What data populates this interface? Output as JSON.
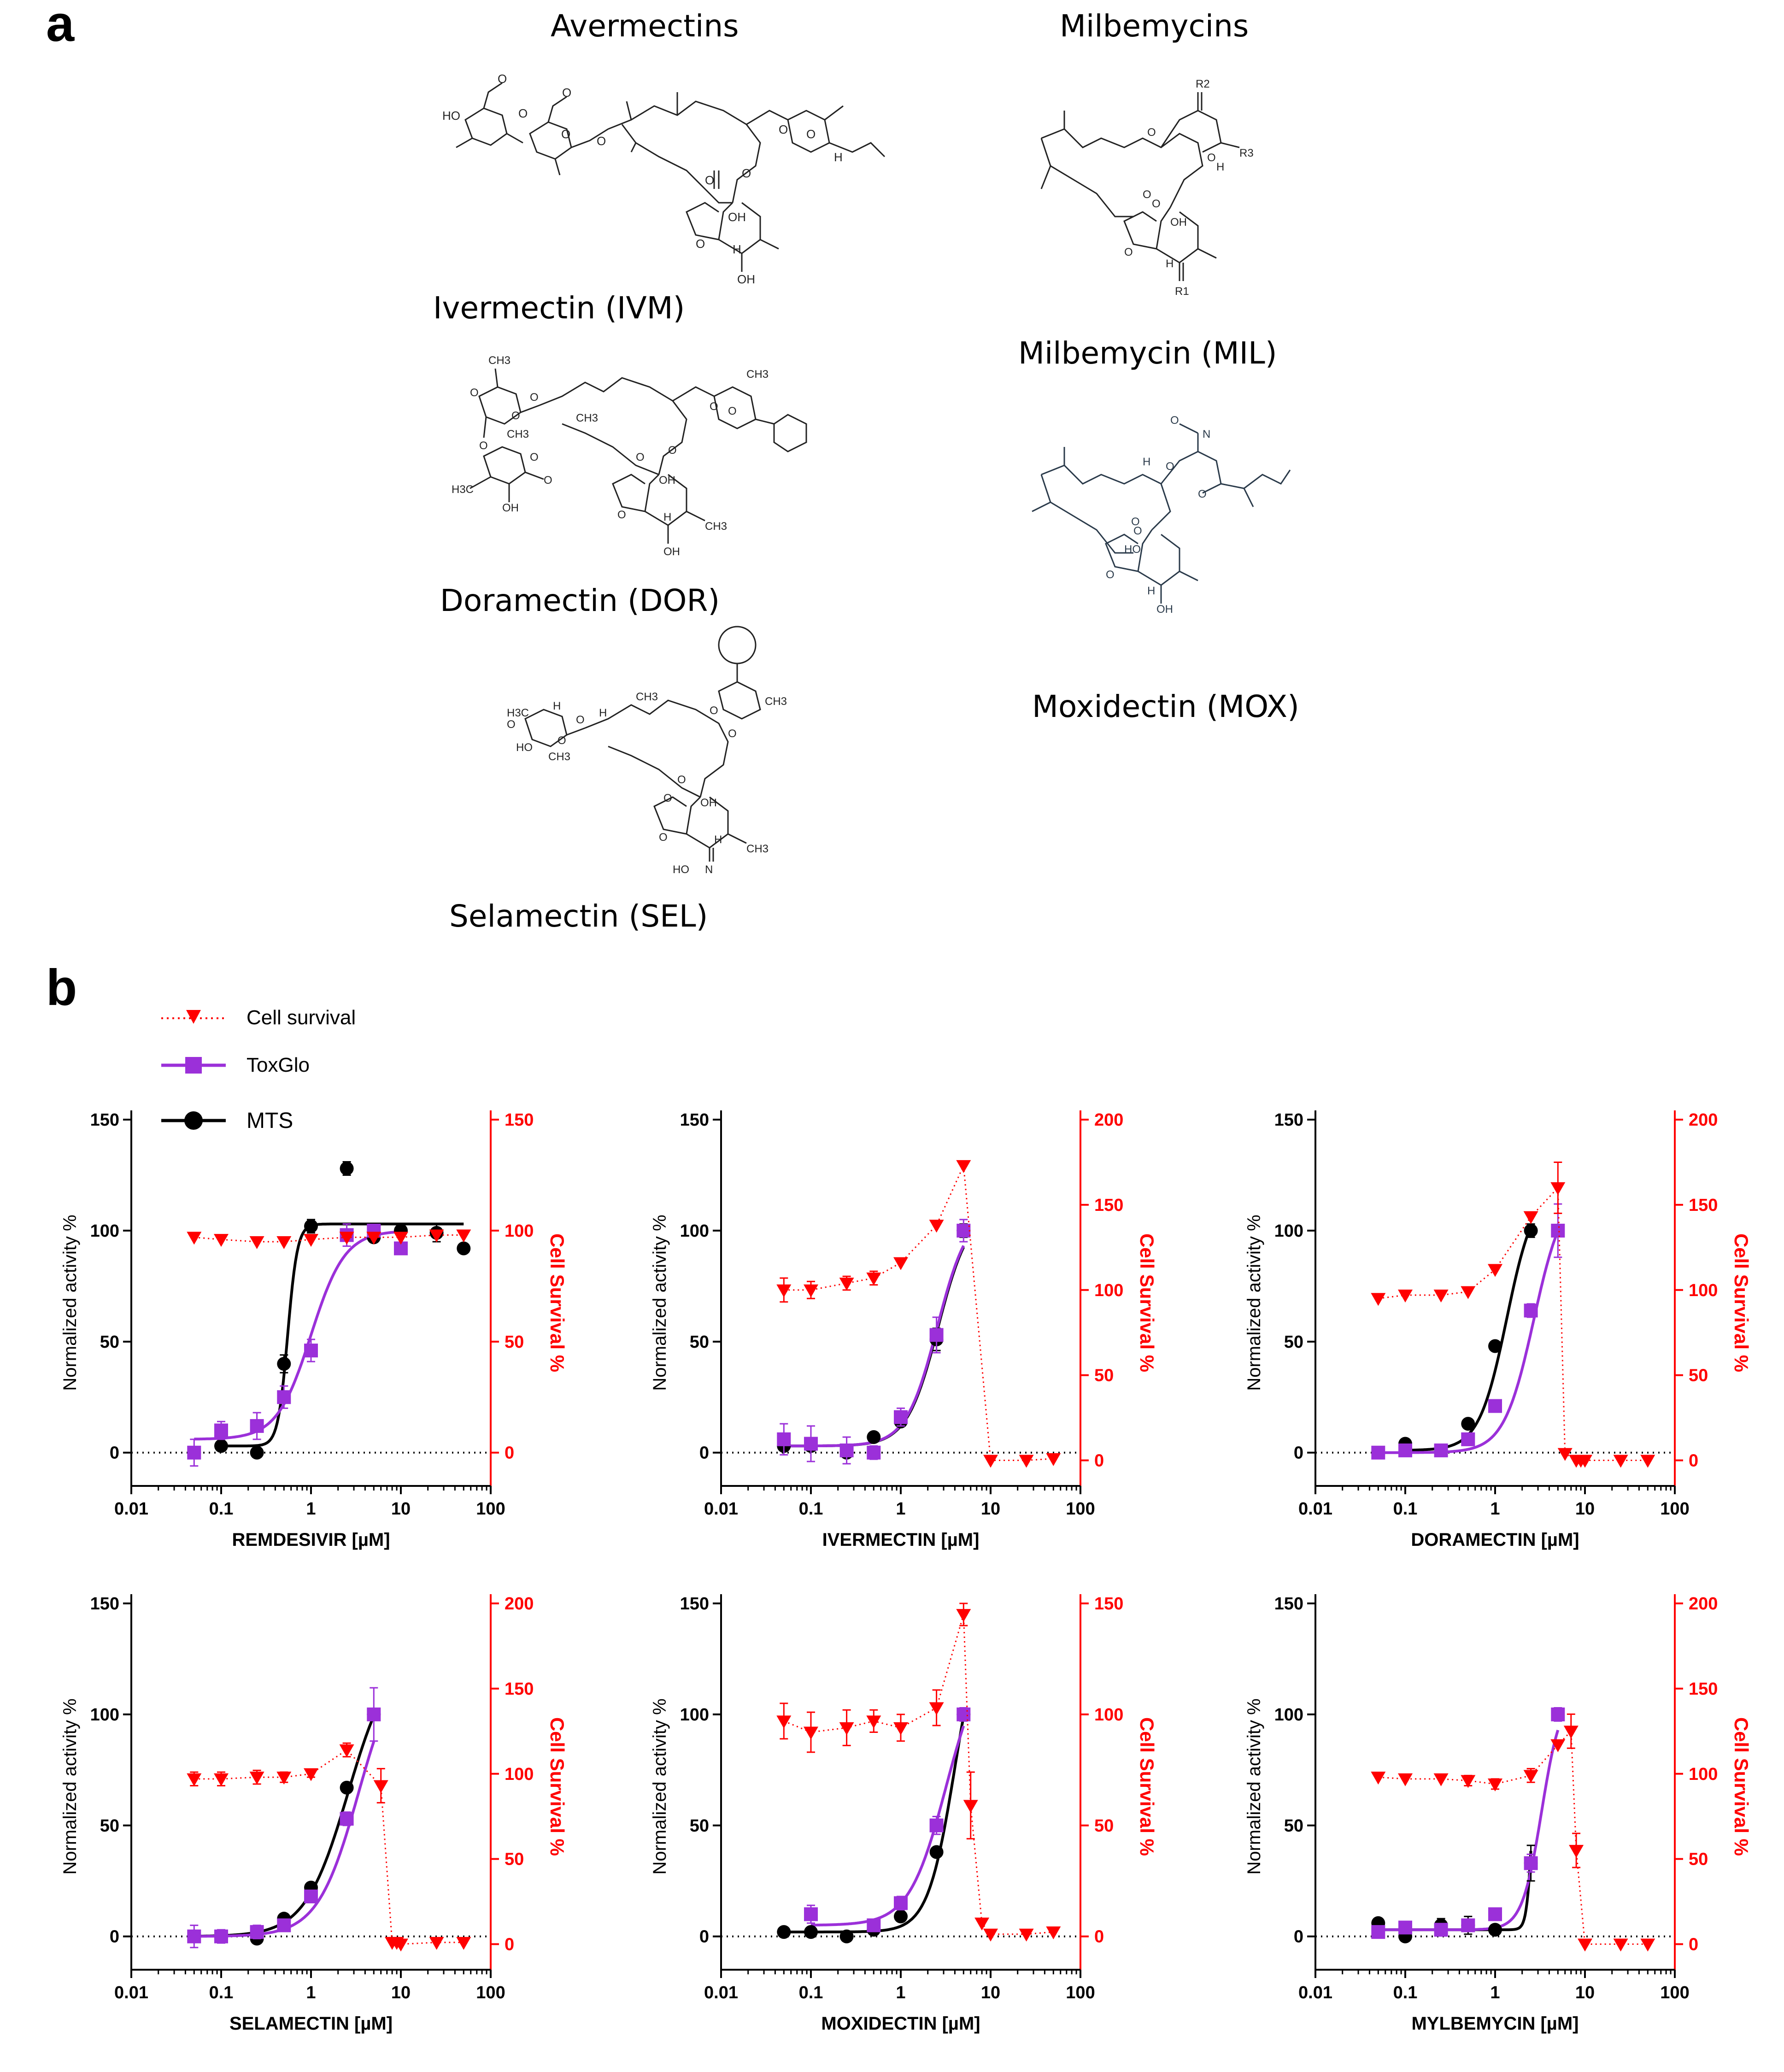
{
  "panel_a": {
    "label": "a",
    "avermectins_title": "Avermectins",
    "milbemycins_title": "Milbemycins",
    "molecules": {
      "ivm": "Ivermectin (IVM)",
      "dor": "Doramectin (DOR)",
      "sel": "Selamectin (SEL)",
      "mil": "Milbemycin (MIL)",
      "mox": "Moxidectin (MOX)"
    },
    "atom_labels": {
      "ivm": [
        "HO",
        "O",
        "O",
        "O",
        "O",
        "O",
        "O",
        "O",
        "O",
        "O",
        "O",
        "H",
        "OH",
        "H",
        "OH"
      ],
      "dor": [
        "CH3",
        "CH3",
        "O",
        "O",
        "O",
        "O",
        "O",
        "O",
        "O",
        "O",
        "O",
        "CH3",
        "CH3",
        "H3C",
        "O",
        "O",
        "OH",
        "OH",
        "H",
        "OH",
        "CH3"
      ],
      "sel": [
        "H3C",
        "HO",
        "O",
        "O",
        "O",
        "H",
        "H",
        "CH3",
        "CH3",
        "O",
        "O",
        "O",
        "CH3",
        "O",
        "OH",
        "O",
        "H",
        "HO",
        "N",
        "CH3"
      ],
      "mil": [
        "R2",
        "O",
        "O",
        "H",
        "R3",
        "O",
        "O",
        "OH",
        "O",
        "H",
        "R1"
      ],
      "mox": [
        "O",
        "N",
        "H",
        "O",
        "O",
        "O",
        "O",
        "HO",
        "O",
        "H",
        "OH"
      ]
    }
  },
  "panel_b": {
    "label": "b",
    "legend": {
      "cell_survival": "Cell survival",
      "toxglo": "ToxGlo",
      "mts": "MTS"
    },
    "colors": {
      "mts": "#000000",
      "toxglo": "#9b30d9",
      "survival": "#ff0000"
    }
  },
  "chart_data": [
    {
      "type": "line",
      "title": "",
      "xlabel": "REMDESIVIR [µM]",
      "ylabel": "Normalized activity %",
      "y2label": "Cell Survival %",
      "xscale": "log",
      "xlim": [
        0.01,
        100
      ],
      "x_ticks": [
        "0.01",
        "0.1",
        "1",
        "10",
        "100"
      ],
      "ylim": [
        -15,
        150
      ],
      "y_ticks": [
        "0",
        "50",
        "100",
        "150"
      ],
      "y2lim": [
        -15,
        150
      ],
      "y2_ticks": [
        "0",
        "50",
        "100",
        "150"
      ],
      "series": [
        {
          "name": "MTS",
          "marker": "circle",
          "x": [
            0.1,
            0.25,
            0.5,
            1,
            2.5,
            5,
            10,
            25,
            50
          ],
          "values": [
            3,
            0,
            40,
            102,
            128,
            97,
            100,
            99,
            92
          ],
          "err": [
            2,
            1,
            4,
            3,
            3,
            2,
            2,
            4,
            1
          ]
        },
        {
          "name": "ToxGlo",
          "marker": "square",
          "x": [
            0.05,
            0.1,
            0.25,
            0.5,
            1,
            2.5,
            5,
            10
          ],
          "values": [
            0,
            10,
            12,
            25,
            46,
            98,
            100,
            92
          ],
          "err": [
            6,
            4,
            6,
            5,
            5,
            5,
            2,
            2
          ]
        },
        {
          "name": "Cell survival",
          "marker": "triangle-down",
          "axis": "right",
          "x": [
            0.05,
            0.1,
            0.25,
            0.5,
            1,
            2.5,
            5,
            10,
            25,
            50
          ],
          "values": [
            97,
            96,
            95,
            95,
            96,
            97,
            97,
            97,
            98,
            98
          ]
        }
      ],
      "fits": [
        {
          "name": "MTS",
          "bottom": 3,
          "top": 103,
          "ec50": 0.55,
          "hill": 8
        },
        {
          "name": "ToxGlo",
          "bottom": 6,
          "top": 100,
          "ec50": 1.0,
          "hill": 2.3
        }
      ]
    },
    {
      "type": "line",
      "xlabel": "IVERMECTIN [µM]",
      "ylabel": "Normalized activity %",
      "y2label": "Cell Survival %",
      "xscale": "log",
      "xlim": [
        0.01,
        100
      ],
      "x_ticks": [
        "0.01",
        "0.1",
        "1",
        "10",
        "100"
      ],
      "ylim": [
        -15,
        150
      ],
      "y_ticks": [
        "0",
        "50",
        "100",
        "150"
      ],
      "y2lim": [
        -15,
        200
      ],
      "y2_ticks": [
        "0",
        "50",
        "100",
        "150",
        "200"
      ],
      "series": [
        {
          "name": "MTS",
          "marker": "circle",
          "x": [
            0.05,
            0.1,
            0.25,
            0.5,
            1,
            2.5,
            5
          ],
          "values": [
            3,
            3,
            0,
            7,
            14,
            51,
            100
          ],
          "err": [
            1,
            1,
            1,
            1,
            2,
            5,
            3
          ]
        },
        {
          "name": "ToxGlo",
          "marker": "square",
          "x": [
            0.05,
            0.1,
            0.25,
            0.5,
            1,
            2.5,
            5
          ],
          "values": [
            6,
            4,
            1,
            0,
            16,
            53,
            100
          ],
          "err": [
            7,
            8,
            6,
            3,
            4,
            8,
            5
          ]
        },
        {
          "name": "Cell survival",
          "marker": "triangle-down",
          "axis": "right",
          "x": [
            0.05,
            0.1,
            0.25,
            0.5,
            1,
            2.5,
            5,
            10,
            25,
            50
          ],
          "values": [
            100,
            100,
            104,
            107,
            116,
            138,
            173,
            0,
            0,
            1
          ],
          "err": [
            7,
            5,
            4,
            4,
            0,
            0,
            0,
            0,
            0,
            0
          ]
        }
      ],
      "fits": [
        {
          "name": "MTS",
          "bottom": 3,
          "top": 110,
          "ec50": 2.6,
          "hill": 2.5
        },
        {
          "name": "ToxGlo",
          "bottom": 3,
          "top": 110,
          "ec50": 2.55,
          "hill": 2.5
        }
      ]
    },
    {
      "type": "line",
      "xlabel": "DORAMECTIN [µM]",
      "ylabel": "Normalized activity %",
      "y2label": "Cell Survival %",
      "xscale": "log",
      "xlim": [
        0.01,
        100
      ],
      "x_ticks": [
        "0.01",
        "0.1",
        "1",
        "10",
        "100"
      ],
      "ylim": [
        -15,
        150
      ],
      "y_ticks": [
        "0",
        "50",
        "100",
        "150"
      ],
      "y2lim": [
        -15,
        200
      ],
      "y2_ticks": [
        "0",
        "50",
        "100",
        "150",
        "200"
      ],
      "series": [
        {
          "name": "MTS",
          "marker": "circle",
          "x": [
            0.1,
            0.5,
            1,
            2.5
          ],
          "values": [
            4,
            13,
            48,
            100
          ],
          "err": [
            1,
            1,
            2,
            3
          ]
        },
        {
          "name": "ToxGlo",
          "marker": "square",
          "x": [
            0.05,
            0.1,
            0.25,
            0.5,
            1,
            2.5,
            5
          ],
          "values": [
            0,
            1,
            1,
            6,
            21,
            64,
            100
          ],
          "err": [
            1,
            1,
            1,
            1,
            2,
            3,
            12
          ]
        },
        {
          "name": "Cell survival",
          "marker": "triangle-down",
          "axis": "right",
          "x": [
            0.05,
            0.1,
            0.25,
            0.5,
            1,
            2.5,
            5,
            6,
            8,
            9,
            10,
            25,
            50
          ],
          "values": [
            95,
            97,
            97,
            99,
            112,
            143,
            160,
            4,
            0,
            0,
            0,
            0,
            0
          ],
          "err": [
            0,
            0,
            0,
            0,
            0,
            0,
            15,
            0,
            0,
            0,
            0,
            0,
            0
          ]
        }
      ],
      "fits": [
        {
          "name": "MTS",
          "bottom": 1,
          "top": 120,
          "ec50": 1.35,
          "hill": 2.8
        },
        {
          "name": "ToxGlo",
          "bottom": 0,
          "top": 120,
          "ec50": 2.7,
          "hill": 2.6
        }
      ]
    },
    {
      "type": "line",
      "xlabel": "SELAMECTIN [µM]",
      "ylabel": "Normalized activity %",
      "y2label": "Cell Survival %",
      "xscale": "log",
      "xlim": [
        0.01,
        100
      ],
      "x_ticks": [
        "0.01",
        "0.1",
        "1",
        "10",
        "100"
      ],
      "ylim": [
        -15,
        150
      ],
      "y_ticks": [
        "0",
        "50",
        "100",
        "150"
      ],
      "y2lim": [
        -15,
        200
      ],
      "y2_ticks": [
        "0",
        "50",
        "100",
        "150",
        "200"
      ],
      "series": [
        {
          "name": "MTS",
          "marker": "circle",
          "x": [
            0.05,
            0.1,
            0.25,
            0.5,
            1,
            2.5,
            5
          ],
          "values": [
            0,
            0,
            -1,
            8,
            22,
            67,
            100
          ],
          "err": [
            1,
            1,
            1,
            1,
            1,
            2,
            2
          ]
        },
        {
          "name": "ToxGlo",
          "marker": "square",
          "x": [
            0.05,
            0.1,
            0.25,
            0.5,
            1,
            2.5,
            5
          ],
          "values": [
            0,
            0,
            2,
            5,
            18,
            53,
            100
          ],
          "err": [
            5,
            3,
            3,
            2,
            2,
            3,
            12
          ]
        },
        {
          "name": "Cell survival",
          "marker": "triangle-down",
          "axis": "right",
          "x": [
            0.05,
            0.1,
            0.25,
            0.5,
            1,
            2.5,
            6,
            8,
            9,
            10,
            25,
            50
          ],
          "values": [
            97,
            97,
            98,
            98,
            100,
            114,
            93,
            1,
            1,
            0,
            1,
            1
          ],
          "err": [
            4,
            4,
            4,
            3,
            2,
            4,
            10,
            0,
            0,
            0,
            0,
            0
          ]
        }
      ],
      "fits": [
        {
          "name": "MTS",
          "bottom": 0,
          "top": 130,
          "ec50": 2.6,
          "hill": 1.8
        },
        {
          "name": "ToxGlo",
          "bottom": 0,
          "top": 130,
          "ec50": 3.4,
          "hill": 1.9
        }
      ]
    },
    {
      "type": "line",
      "xlabel": "MOXIDECTIN [µM]",
      "ylabel": "Normalized activity %",
      "y2label": "Cell Survival %",
      "xscale": "log",
      "xlim": [
        0.01,
        100
      ],
      "x_ticks": [
        "0.01",
        "0.1",
        "1",
        "10",
        "100"
      ],
      "ylim": [
        -15,
        150
      ],
      "y_ticks": [
        "0",
        "50",
        "100",
        "150"
      ],
      "y2lim": [
        -15,
        150
      ],
      "y2_ticks": [
        "0",
        "50",
        "100",
        "150"
      ],
      "series": [
        {
          "name": "MTS",
          "marker": "circle",
          "x": [
            0.05,
            0.1,
            0.25,
            0.5,
            1,
            2.5,
            5
          ],
          "values": [
            2,
            2,
            0,
            3,
            9,
            38,
            100
          ],
          "err": [
            1,
            1,
            1,
            1,
            1,
            2,
            2
          ]
        },
        {
          "name": "ToxGlo",
          "marker": "square",
          "x": [
            0.1,
            0.5,
            1,
            2.5,
            5
          ],
          "values": [
            10,
            5,
            15,
            50,
            100
          ],
          "err": [
            4,
            2,
            3,
            4,
            3
          ]
        },
        {
          "name": "Cell survival",
          "marker": "triangle-down",
          "axis": "right",
          "x": [
            0.05,
            0.1,
            0.25,
            0.5,
            1,
            2.5,
            5,
            6,
            8,
            10,
            25,
            50
          ],
          "values": [
            97,
            92,
            94,
            97,
            94,
            103,
            145,
            59,
            6,
            1,
            1,
            2
          ],
          "err": [
            8,
            9,
            8,
            5,
            6,
            8,
            5,
            15,
            0,
            0,
            0,
            0
          ]
        }
      ],
      "fits": [
        {
          "name": "MTS",
          "bottom": 2,
          "top": 150,
          "ec50": 4.0,
          "hill": 2.9
        },
        {
          "name": "ToxGlo",
          "bottom": 5,
          "top": 130,
          "ec50": 3.2,
          "hill": 2.1
        }
      ]
    },
    {
      "type": "line",
      "xlabel": "MYLBEMYCIN [µM]",
      "ylabel": "Normalized activity %",
      "y2label": "Cell Survival %",
      "xscale": "log",
      "xlim": [
        0.01,
        100
      ],
      "x_ticks": [
        "0.01",
        "0.1",
        "1",
        "10",
        "100"
      ],
      "ylim": [
        -15,
        150
      ],
      "y_ticks": [
        "0",
        "50",
        "100",
        "150"
      ],
      "y2lim": [
        -15,
        200
      ],
      "y2_ticks": [
        "0",
        "50",
        "100",
        "150",
        "200"
      ],
      "series": [
        {
          "name": "MTS",
          "marker": "circle",
          "x": [
            0.05,
            0.1,
            0.25,
            0.5,
            1,
            2.5
          ],
          "values": [
            6,
            0,
            5,
            5,
            3,
            33
          ],
          "err": [
            1,
            1,
            3,
            4,
            1,
            8
          ]
        },
        {
          "name": "ToxGlo",
          "marker": "square",
          "x": [
            0.05,
            0.1,
            0.25,
            0.5,
            1,
            2.5,
            5
          ],
          "values": [
            2,
            4,
            3,
            5,
            10,
            33,
            100
          ],
          "err": [
            1,
            1,
            1,
            1,
            1,
            4,
            3
          ]
        },
        {
          "name": "Cell survival",
          "marker": "triangle-down",
          "axis": "right",
          "x": [
            0.05,
            0.1,
            0.25,
            0.5,
            1,
            2.5,
            5,
            7,
            8,
            10,
            25,
            50
          ],
          "values": [
            98,
            97,
            97,
            96,
            94,
            99,
            117,
            125,
            55,
            0,
            0,
            0
          ],
          "err": [
            0,
            0,
            0,
            3,
            3,
            4,
            0,
            10,
            10,
            0,
            0,
            0
          ]
        }
      ],
      "fits": [
        {
          "name": "MTS",
          "bottom": 3,
          "top": 100,
          "ec50": 2.6,
          "hill": 14
        },
        {
          "name": "ToxGlo",
          "bottom": 3,
          "top": 110,
          "ec50": 3.3,
          "hill": 4
        }
      ]
    }
  ]
}
